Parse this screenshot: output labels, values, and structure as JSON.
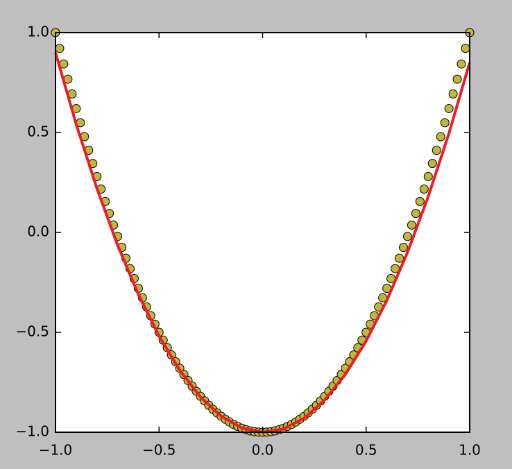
{
  "chart_data": {
    "type": "scatter",
    "series": [
      {
        "type": "scatter",
        "color": "#bfb83a",
        "x": [
          -1,
          -0.98,
          -0.96,
          -0.94,
          -0.92,
          -0.9,
          -0.88,
          -0.86,
          -0.84,
          -0.82,
          -0.8,
          -0.78,
          -0.76,
          -0.74,
          -0.72,
          -0.7,
          -0.68,
          -0.66,
          -0.64,
          -0.62,
          -0.6,
          -0.58,
          -0.56,
          -0.54,
          -0.52,
          -0.5,
          -0.48,
          -0.46,
          -0.44,
          -0.42,
          -0.4,
          -0.38,
          -0.36,
          -0.34,
          -0.32,
          -0.3,
          -0.28,
          -0.26,
          -0.24,
          -0.22,
          -0.2,
          -0.18,
          -0.16,
          -0.14,
          -0.12,
          -0.1,
          -0.08,
          -0.06,
          -0.04,
          -0.02,
          0,
          0.02,
          0.04,
          0.06,
          0.08,
          0.1,
          0.12,
          0.14,
          0.16,
          0.18,
          0.2,
          0.22,
          0.24,
          0.26,
          0.28,
          0.3,
          0.32,
          0.34,
          0.36,
          0.38,
          0.4,
          0.42,
          0.44,
          0.46,
          0.48,
          0.5,
          0.52,
          0.54,
          0.56,
          0.58,
          0.6,
          0.62,
          0.64,
          0.66,
          0.68,
          0.7,
          0.72,
          0.74,
          0.76,
          0.78,
          0.8,
          0.82,
          0.84,
          0.86,
          0.88,
          0.9,
          0.92,
          0.94,
          0.96,
          0.98,
          1
        ],
        "values": [
          1,
          0.921,
          0.843,
          0.767,
          0.693,
          0.62,
          0.549,
          0.479,
          0.411,
          0.345,
          0.28,
          0.217,
          0.155,
          0.095,
          0.037,
          -0.02,
          -0.075,
          -0.129,
          -0.181,
          -0.231,
          -0.28,
          -0.327,
          -0.373,
          -0.417,
          -0.459,
          -0.5,
          -0.539,
          -0.577,
          -0.613,
          -0.647,
          -0.68,
          -0.711,
          -0.741,
          -0.769,
          -0.795,
          -0.82,
          -0.843,
          -0.865,
          -0.885,
          -0.903,
          -0.92,
          -0.935,
          -0.949,
          -0.961,
          -0.971,
          -0.98,
          -0.987,
          -0.993,
          -0.997,
          -0.999,
          -1,
          -0.999,
          -0.997,
          -0.993,
          -0.987,
          -0.98,
          -0.971,
          -0.961,
          -0.949,
          -0.935,
          -0.92,
          -0.903,
          -0.885,
          -0.865,
          -0.843,
          -0.82,
          -0.795,
          -0.769,
          -0.741,
          -0.711,
          -0.68,
          -0.647,
          -0.613,
          -0.577,
          -0.539,
          -0.5,
          -0.459,
          -0.417,
          -0.373,
          -0.327,
          -0.28,
          -0.231,
          -0.181,
          -0.129,
          -0.075,
          -0.02,
          0.037,
          0.095,
          0.155,
          0.217,
          0.28,
          0.345,
          0.411,
          0.479,
          0.549,
          0.62,
          0.693,
          0.767,
          0.843,
          0.921,
          1
        ]
      },
      {
        "type": "line",
        "color": "#ee1c24",
        "x": [
          -1,
          -0.9,
          -0.8,
          -0.7,
          -0.6,
          -0.5,
          -0.4,
          -0.3,
          -0.2,
          -0.1,
          0,
          0.1,
          0.2,
          0.3,
          0.4,
          0.5,
          0.6,
          0.7,
          0.8,
          0.9,
          1
        ],
        "values": [
          0.9,
          0.541,
          0.22,
          -0.064,
          -0.31,
          -0.519,
          -0.69,
          -0.824,
          -0.92,
          -0.979,
          -1,
          -0.984,
          -0.93,
          -0.839,
          -0.71,
          -0.544,
          -0.34,
          -0.099,
          0.18,
          0.496,
          0.85
        ]
      }
    ],
    "xlim": [
      -1,
      1
    ],
    "ylim": [
      -1,
      1
    ],
    "xticks": [
      {
        "value": -1,
        "label": "−1.0"
      },
      {
        "value": -0.5,
        "label": "−0.5"
      },
      {
        "value": 0,
        "label": "0.0"
      },
      0.5,
      {
        "value": 1,
        "label": "1.0"
      }
    ],
    "yticks": [
      {
        "value": -1,
        "label": "−1.0"
      },
      {
        "value": -0.5,
        "label": "−0.5"
      },
      {
        "value": 0,
        "label": "0.0"
      },
      0.5,
      {
        "value": 1,
        "label": "1.0"
      }
    ],
    "grid": false
  }
}
